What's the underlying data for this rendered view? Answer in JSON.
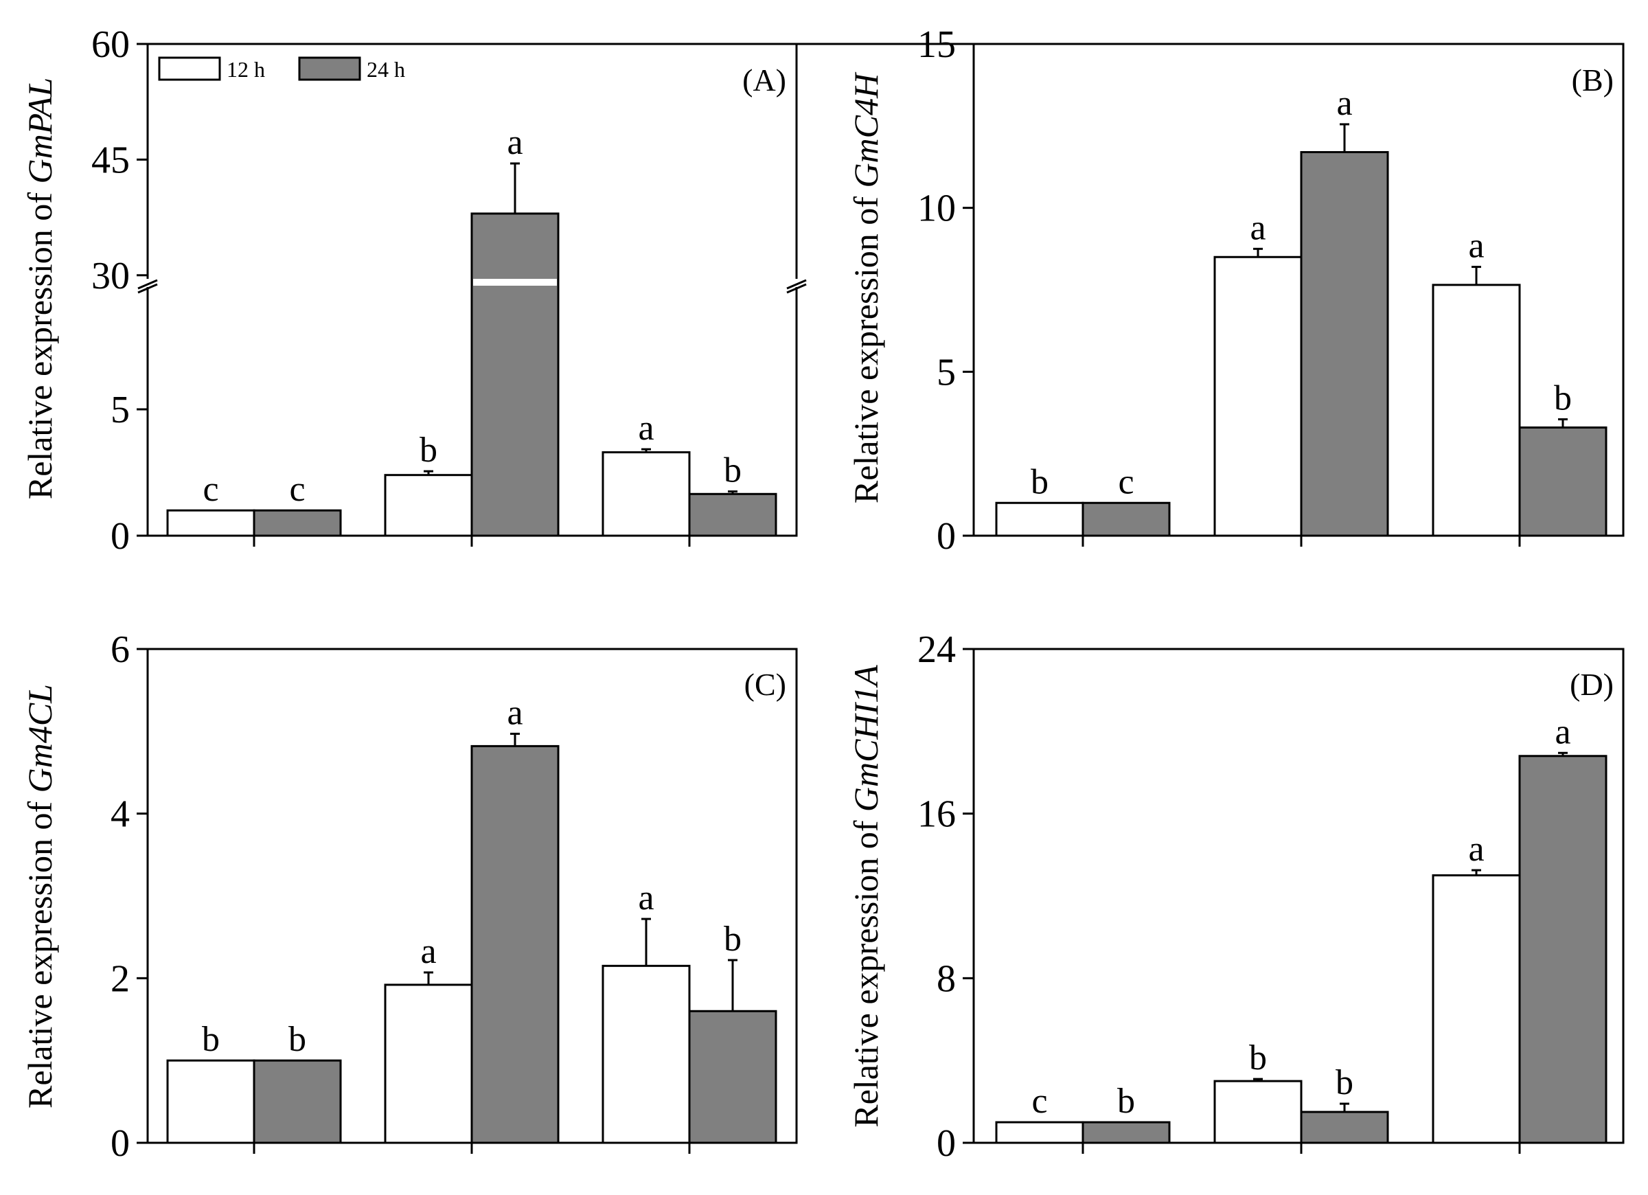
{
  "legend": {
    "series": [
      {
        "name": "12 h",
        "color": "#ffffff"
      },
      {
        "name": "24 h",
        "color": "#808080"
      }
    ]
  },
  "chart_data": [
    {
      "type": "bar",
      "panel": "(A)",
      "ylabel_prefix": "Relative expression of ",
      "gene": "GmPAL",
      "axis_break": true,
      "lower_ticks": [
        "0",
        "5"
      ],
      "upper_ticks": [
        "30",
        "45",
        "60"
      ],
      "ylim_lower": [
        0,
        10
      ],
      "ylim_upper": [
        29,
        60
      ],
      "legend_position": "top-left",
      "series": [
        {
          "name": "12 h",
          "values": [
            1.0,
            2.4,
            3.3
          ],
          "errors": [
            0.0,
            0.15,
            0.12
          ],
          "letters": [
            "c",
            "b",
            "a"
          ]
        },
        {
          "name": "24 h",
          "values": [
            1.0,
            38.0,
            1.65
          ],
          "errors": [
            0.0,
            6.5,
            0.1
          ],
          "letters": [
            "c",
            "a",
            "b"
          ]
        }
      ]
    },
    {
      "type": "bar",
      "panel": "(B)",
      "ylabel_prefix": "Relative expression of ",
      "gene": "GmC4H",
      "ylim": [
        0,
        15
      ],
      "yticks": [
        0,
        5,
        10,
        15
      ],
      "series": [
        {
          "name": "12 h",
          "values": [
            1.0,
            8.5,
            7.65
          ],
          "errors": [
            0.0,
            0.25,
            0.55
          ],
          "letters": [
            "b",
            "a",
            "a"
          ]
        },
        {
          "name": "24 h",
          "values": [
            1.0,
            11.7,
            3.3
          ],
          "errors": [
            0.0,
            0.85,
            0.25
          ],
          "letters": [
            "c",
            "a",
            "b"
          ]
        }
      ]
    },
    {
      "type": "bar",
      "panel": "(C)",
      "ylabel_prefix": "Relative expression of ",
      "gene": "Gm4CL",
      "ylim": [
        0,
        6
      ],
      "yticks": [
        0,
        2,
        4,
        6
      ],
      "series": [
        {
          "name": "12 h",
          "values": [
            1.0,
            1.92,
            2.15
          ],
          "errors": [
            0.0,
            0.15,
            0.57
          ],
          "letters": [
            "b",
            "a",
            "a"
          ]
        },
        {
          "name": "24 h",
          "values": [
            1.0,
            4.82,
            1.6
          ],
          "errors": [
            0.0,
            0.15,
            0.62
          ],
          "letters": [
            "b",
            "a",
            "b"
          ]
        }
      ]
    },
    {
      "type": "bar",
      "panel": "(D)",
      "ylabel_prefix": "Relative expression of ",
      "gene": "GmCHI1A",
      "ylim": [
        0,
        24
      ],
      "yticks": [
        0,
        8,
        16,
        24
      ],
      "series": [
        {
          "name": "12 h",
          "values": [
            1.0,
            3.0,
            13.0
          ],
          "errors": [
            0.0,
            0.1,
            0.25
          ],
          "letters": [
            "c",
            "b",
            "a"
          ]
        },
        {
          "name": "24 h",
          "values": [
            1.0,
            1.5,
            18.8
          ],
          "errors": [
            0.0,
            0.4,
            0.15
          ],
          "letters": [
            "b",
            "b",
            "a"
          ]
        }
      ]
    }
  ]
}
